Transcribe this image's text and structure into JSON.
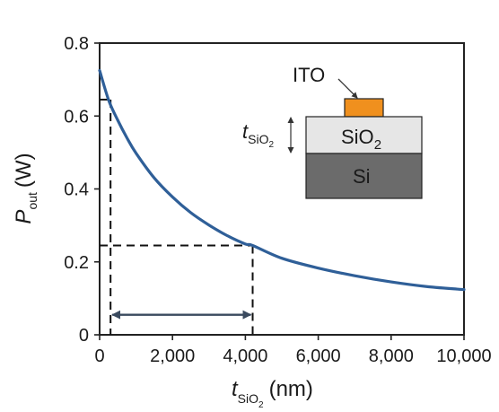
{
  "chart_data": {
    "type": "line",
    "xlabel": {
      "main": "t",
      "sub": "SiO",
      "subsub": "2",
      "unit": "(nm)"
    },
    "ylabel": {
      "main": "P",
      "sub": "out",
      "unit": "(W)"
    },
    "xlim": [
      0,
      10000
    ],
    "ylim": [
      0,
      0.8
    ],
    "xticks": [
      0,
      2000,
      4000,
      6000,
      8000,
      10000
    ],
    "xtick_labels": [
      "0",
      "2,000",
      "4,000",
      "6,000",
      "8,000",
      "10,000"
    ],
    "yticks": [
      0,
      0.2,
      0.4,
      0.6,
      0.8
    ],
    "ytick_labels": [
      "0",
      "0.2",
      "0.4",
      "0.6",
      "0.8"
    ],
    "grid": false,
    "series": [
      {
        "color": "#2f5f98",
        "x": [
          0,
          250,
          500,
          750,
          1000,
          1500,
          2000,
          2500,
          3000,
          3500,
          4000,
          4200,
          5000,
          6000,
          7000,
          8000,
          9000,
          10000
        ],
        "y": [
          0.725,
          0.643,
          0.588,
          0.54,
          0.498,
          0.43,
          0.378,
          0.335,
          0.301,
          0.272,
          0.249,
          0.245,
          0.21,
          0.183,
          0.162,
          0.145,
          0.132,
          0.124
        ]
      }
    ],
    "annotations": {
      "reference_lines": [
        {
          "x": 300,
          "y": 0.645
        },
        {
          "x": 4200,
          "y": 0.245
        }
      ],
      "range_arrow": {
        "x_from": 300,
        "x_to": 4200,
        "y": 0.055,
        "color": "#3a4a5e"
      }
    }
  },
  "inset": {
    "layers": [
      {
        "label": "ITO",
        "color": "#f0901e"
      },
      {
        "label": "SiO",
        "sub": "2",
        "color": "#e6e6e6"
      },
      {
        "label": "Si",
        "color": "#6b6b6b"
      }
    ],
    "thickness_label": {
      "main": "t",
      "sub": "SiO",
      "subsub": "2"
    }
  }
}
